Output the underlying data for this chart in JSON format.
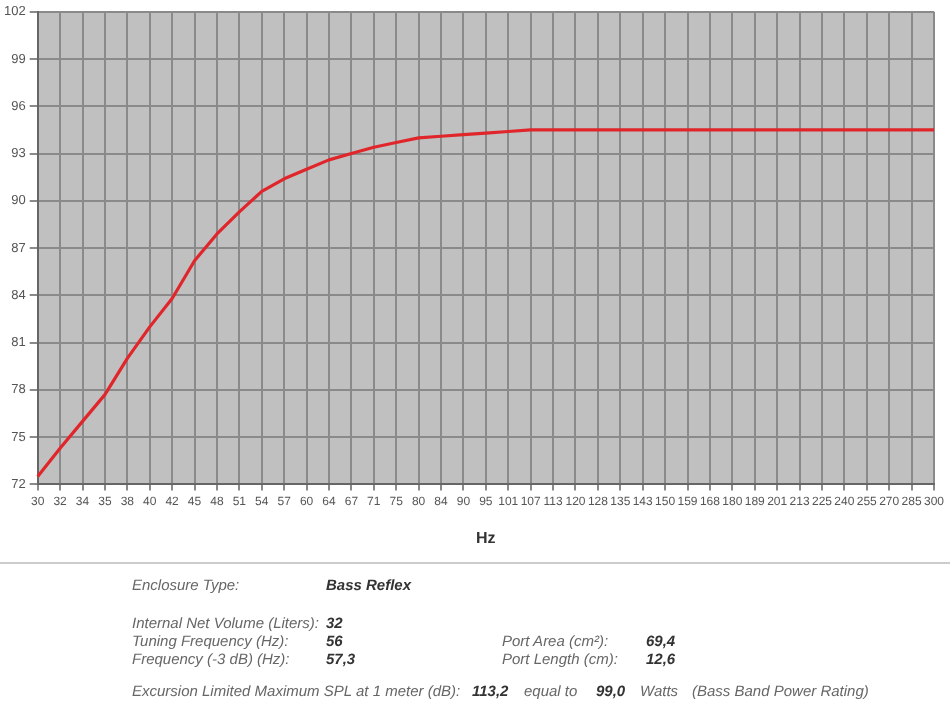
{
  "chart_data": {
    "type": "line",
    "xlabel": "Hz",
    "categories": [
      "30",
      "32",
      "34",
      "35",
      "38",
      "40",
      "42",
      "45",
      "48",
      "51",
      "54",
      "57",
      "60",
      "64",
      "67",
      "71",
      "75",
      "80",
      "84",
      "90",
      "95",
      "101",
      "107",
      "113",
      "120",
      "128",
      "135",
      "143",
      "150",
      "159",
      "168",
      "180",
      "189",
      "201",
      "213",
      "225",
      "240",
      "255",
      "270",
      "285",
      "300"
    ],
    "series": [
      {
        "color": "#e0262a",
        "values": [
          72.5,
          74.3,
          76.0,
          77.7,
          80.0,
          82.0,
          83.8,
          86.2,
          87.9,
          89.3,
          90.6,
          91.4,
          92.0,
          92.6,
          93.0,
          93.4,
          93.7,
          94.0,
          94.1,
          94.2,
          94.3,
          94.4,
          94.5,
          94.5,
          94.5,
          94.5,
          94.5,
          94.5,
          94.5,
          94.5,
          94.5,
          94.5,
          94.5,
          94.5,
          94.5,
          94.5,
          94.5,
          94.5,
          94.5,
          94.5,
          94.5
        ]
      }
    ],
    "ylim": [
      72,
      102
    ],
    "yticks": [
      72,
      75,
      78,
      81,
      84,
      87,
      90,
      93,
      96,
      99,
      102
    ],
    "grid": true,
    "legend": false,
    "marker": "none",
    "line_style": "solid",
    "annotations": [
      "Enclosure Type:",
      "Bass Reflex",
      "Internal  Net Volume (Liters):",
      "32",
      "Tuning Frequency (Hz):",
      "56",
      "Frequency (-3 dB) (Hz):",
      "57,3",
      "Port Area (cm²):",
      "69,4",
      "Port Length (cm):",
      "12,6",
      "Excursion Limited Maximum SPL at 1 meter (dB):",
      "113,2",
      "equal to",
      "99,0",
      "Watts",
      "(Bass Band Power Rating)"
    ]
  }
}
